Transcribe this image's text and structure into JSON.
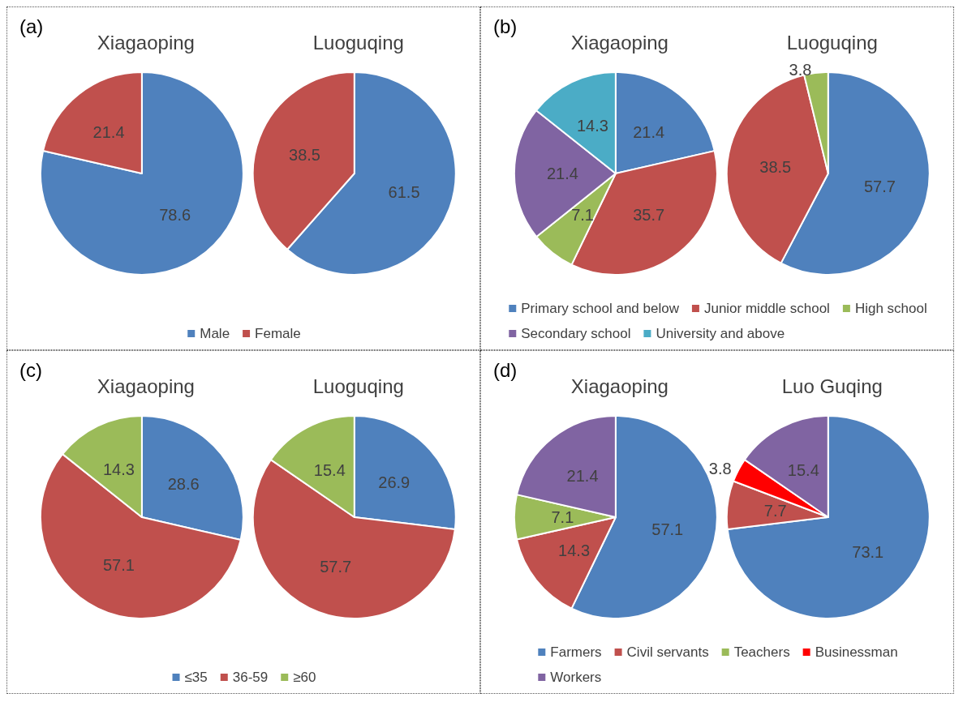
{
  "chart_data": [
    {
      "type": "pie",
      "annotations": [
        "(a)"
      ],
      "categories": [
        "Male",
        "Female"
      ],
      "colors": [
        "#4f81bd",
        "#c0504d"
      ],
      "data_labels": true,
      "legend": "bottom",
      "series": [
        {
          "name": "Xiagaoping",
          "values": [
            78.6,
            21.4
          ]
        },
        {
          "name": "Luoguqing",
          "values": [
            61.5,
            38.5
          ]
        }
      ]
    },
    {
      "type": "pie",
      "annotations": [
        "(b)"
      ],
      "categories": [
        "Primary school and below",
        "Junior middle school",
        "High school",
        "Secondary school",
        "University and above"
      ],
      "colors": [
        "#4f81bd",
        "#c0504d",
        "#9bbb59",
        "#8064a2",
        "#4bacc6"
      ],
      "data_labels": true,
      "legend": "bottom",
      "series": [
        {
          "name": "Xiagaoping",
          "values": [
            21.4,
            35.7,
            7.1,
            21.4,
            14.3
          ]
        },
        {
          "name": "Luoguqing",
          "values": [
            57.7,
            38.5,
            3.8,
            null,
            null
          ]
        }
      ]
    },
    {
      "type": "pie",
      "annotations": [
        "(c)"
      ],
      "categories": [
        "≤35",
        "36-59",
        "≥60"
      ],
      "colors": [
        "#4f81bd",
        "#c0504d",
        "#9bbb59"
      ],
      "data_labels": true,
      "legend": "bottom",
      "series": [
        {
          "name": "Xiagaoping",
          "values": [
            28.6,
            57.1,
            14.3
          ]
        },
        {
          "name": "Luoguqing",
          "values": [
            26.9,
            57.7,
            15.4
          ]
        }
      ]
    },
    {
      "type": "pie",
      "annotations": [
        "(d)"
      ],
      "categories": [
        "Farmers",
        "Civil servants",
        "Teachers",
        "Businessman",
        "Workers"
      ],
      "colors": [
        "#4f81bd",
        "#c0504d",
        "#9bbb59",
        "#ff0000",
        "#8064a2"
      ],
      "data_labels": true,
      "legend": "bottom",
      "series": [
        {
          "name": "Xiagaoping",
          "values": [
            57.1,
            14.3,
            7.1,
            null,
            21.4
          ]
        },
        {
          "name": "Luo Guqing",
          "values": [
            73.1,
            7.7,
            null,
            3.8,
            15.4
          ]
        }
      ]
    }
  ]
}
